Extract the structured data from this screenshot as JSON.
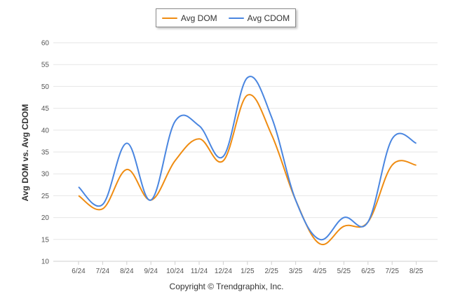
{
  "chart_data": {
    "type": "line",
    "categories": [
      "6/24",
      "7/24",
      "8/24",
      "9/24",
      "10/24",
      "11/24",
      "12/24",
      "1/25",
      "2/25",
      "3/25",
      "4/25",
      "5/25",
      "6/25",
      "7/25",
      "8/25"
    ],
    "series": [
      {
        "name": "Avg DOM",
        "color": "#ef8c12",
        "values": [
          25,
          22,
          31,
          24,
          33,
          38,
          33,
          48,
          39,
          24,
          14,
          18,
          19,
          32,
          32
        ]
      },
      {
        "name": "Avg CDOM",
        "color": "#4a86e0",
        "values": [
          27,
          23,
          37,
          24,
          42,
          41,
          34,
          52,
          43,
          24,
          15,
          20,
          19,
          38,
          37
        ]
      }
    ],
    "ylabel": "Avg DOM vs. Avg CDOM",
    "ylim": [
      10,
      60
    ],
    "yticks": [
      10,
      15,
      20,
      25,
      30,
      35,
      40,
      45,
      50,
      55,
      60
    ],
    "grid": true,
    "legend_position": "top-center"
  },
  "footer": {
    "copyright": "Copyright © Trendgraphix, Inc."
  }
}
